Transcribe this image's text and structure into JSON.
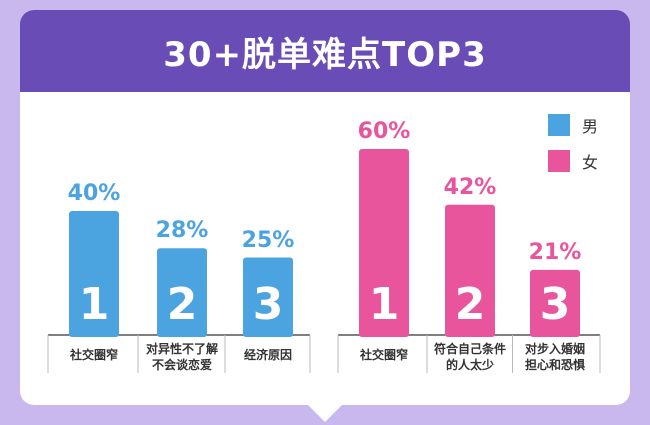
{
  "header": {
    "title": "30+脱单难点TOP3"
  },
  "legend": [
    {
      "label": "男",
      "color": "#4ba3e0"
    },
    {
      "label": "女",
      "color": "#e9559c"
    }
  ],
  "chart_data": [
    {
      "type": "bar",
      "series_name": "男",
      "color": "#4ba3e0",
      "categories": [
        "社交圈窄",
        "对异性不了解不会谈恋爱",
        "经济原因"
      ],
      "category_lines": [
        [
          "社交圈窄"
        ],
        [
          "对异性不了解",
          "不会谈恋爱"
        ],
        [
          "经济原因"
        ]
      ],
      "values": [
        40,
        28,
        25
      ],
      "value_labels": [
        "40%",
        "28%",
        "25%"
      ],
      "ranks": [
        "1",
        "2",
        "3"
      ],
      "ylim": [
        0,
        60
      ]
    },
    {
      "type": "bar",
      "series_name": "女",
      "color": "#e9559c",
      "categories": [
        "社交圈窄",
        "符合自己条件的人太少",
        "对步入婚姻担心和恐惧"
      ],
      "category_lines": [
        [
          "社交圈窄"
        ],
        [
          "符合自己条件",
          "的人太少"
        ],
        [
          "对步入婚姻",
          "担心和恐惧"
        ]
      ],
      "values": [
        60,
        42,
        21
      ],
      "value_labels": [
        "60%",
        "42%",
        "21%"
      ],
      "ranks": [
        "1",
        "2",
        "3"
      ],
      "ylim": [
        0,
        60
      ]
    }
  ]
}
